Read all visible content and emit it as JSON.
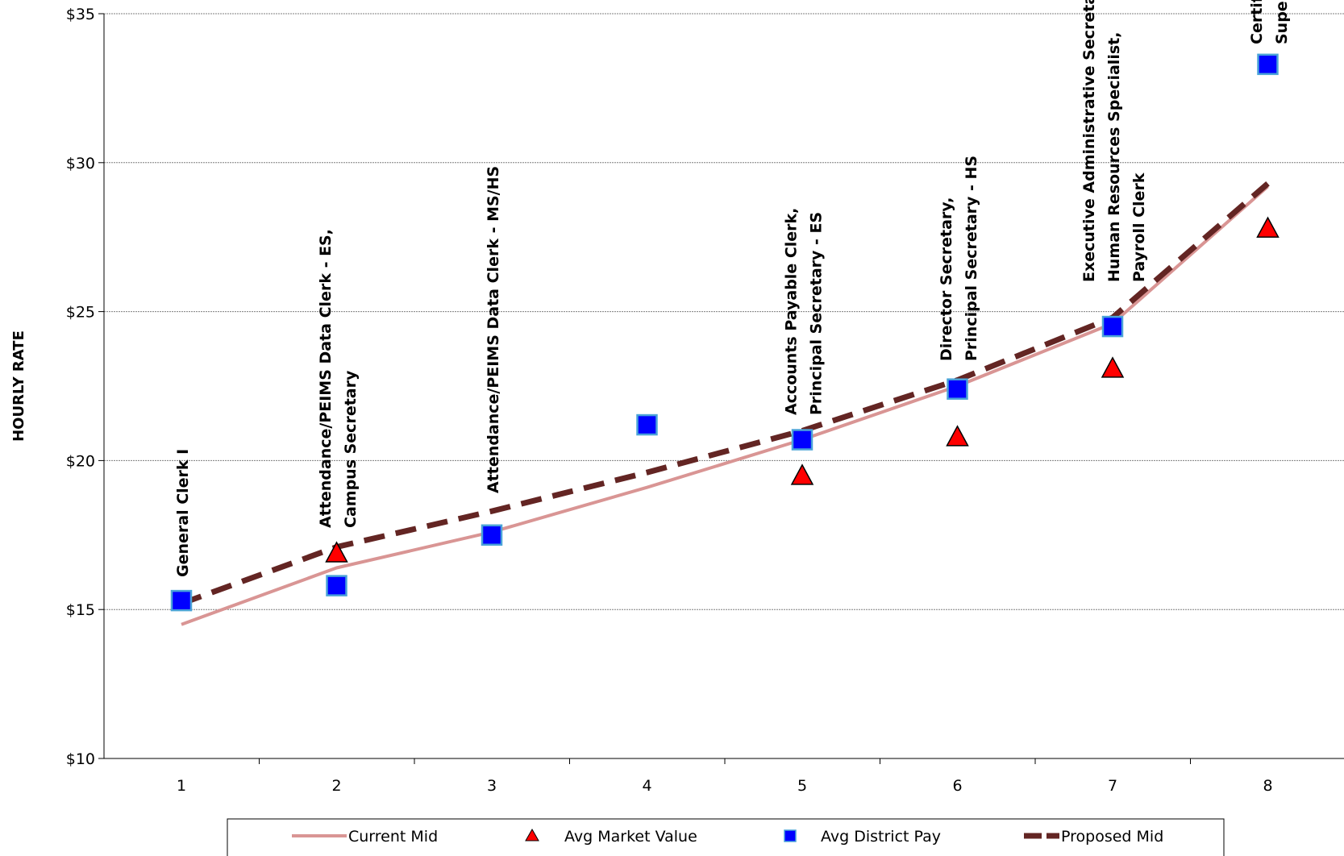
{
  "chart_data": {
    "type": "line",
    "title": "",
    "xlabel": "",
    "ylabel": "HOURLY RATE",
    "x": [
      1,
      2,
      3,
      4,
      5,
      6,
      7,
      8
    ],
    "ylim": [
      10,
      35
    ],
    "y_ticks": [
      10,
      15,
      20,
      25,
      30,
      35
    ],
    "y_tick_labels": [
      "$10",
      "$15",
      "$20",
      "$25",
      "$30",
      "$35"
    ],
    "grid": "horizontal",
    "legend_position": "bottom",
    "series": [
      {
        "name": "Current Mid",
        "kind": "line",
        "color": "#d99594",
        "values": [
          14.5,
          16.4,
          17.6,
          19.1,
          20.7,
          22.5,
          24.6,
          29.2
        ]
      },
      {
        "name": "Avg Market Value",
        "kind": "triangle",
        "color": "#ff0000",
        "values": [
          null,
          16.9,
          null,
          null,
          19.5,
          20.8,
          23.1,
          27.8
        ]
      },
      {
        "name": "Avg District Pay",
        "kind": "square",
        "color": "#0000ff",
        "values": [
          15.3,
          15.8,
          17.5,
          21.2,
          20.7,
          22.4,
          24.5,
          33.3
        ]
      },
      {
        "name": "Proposed Mid",
        "kind": "dashed",
        "color": "#632523",
        "values": [
          15.2,
          17.1,
          18.3,
          19.6,
          21.0,
          22.7,
          24.8,
          29.3
        ]
      }
    ],
    "annotations": [
      {
        "x": 1,
        "lines": [
          "General Clerk I"
        ]
      },
      {
        "x": 2,
        "lines": [
          "Attendance/PEIMS Data Clerk - ES,",
          "Campus Secretary"
        ]
      },
      {
        "x": 3,
        "lines": [
          "Attendance/PEIMS Data Clerk - MS/HS"
        ]
      },
      {
        "x": 5,
        "lines": [
          "Accounts Payable Clerk,",
          "Principal Secretary - ES"
        ]
      },
      {
        "x": 6,
        "lines": [
          "Director Secretary,",
          "Principal Secretary - HS"
        ]
      },
      {
        "x": 7,
        "lines": [
          "Executive Administrative Secretary,",
          "Human Resources Specialist,",
          "Payroll Clerk"
        ]
      },
      {
        "x": 8,
        "lines": [
          "Certified Payroll Specialist,",
          "Supervisor"
        ]
      }
    ]
  }
}
